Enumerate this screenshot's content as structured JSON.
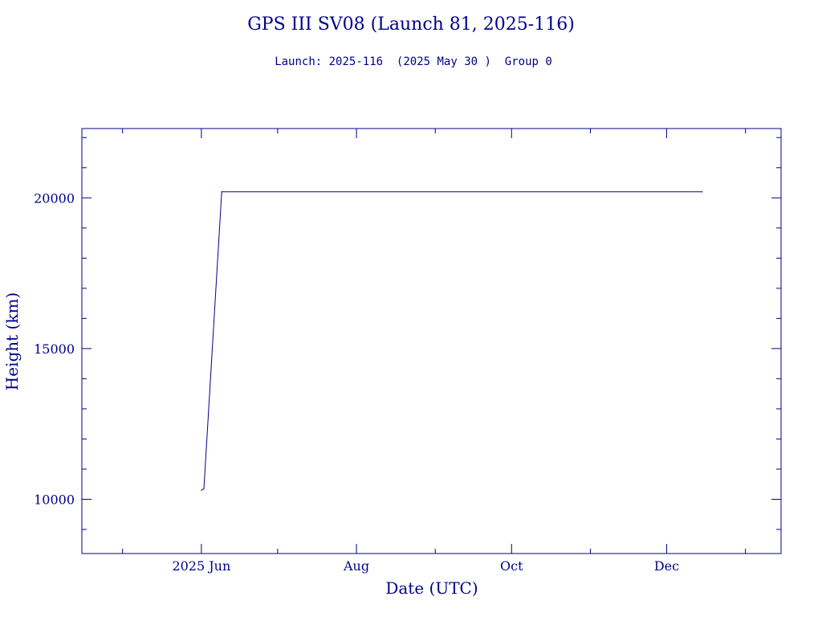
{
  "chart_data": {
    "type": "line",
    "title": "GPS III SV08 (Launch 81, 2025-116)",
    "subtitle": "Launch: 2025-116  (2025 May 30 )  Group 0",
    "xlabel": "Date (UTC)",
    "ylabel": "Height (km)",
    "xlim": [
      "2025-04-15",
      "2026-01-15"
    ],
    "ylim": [
      8200,
      22300
    ],
    "x_ticks": [
      {
        "date": "2025-06-01",
        "label": "2025 Jun"
      },
      {
        "date": "2025-08-01",
        "label": "Aug"
      },
      {
        "date": "2025-10-01",
        "label": "Oct"
      },
      {
        "date": "2025-12-01",
        "label": "Dec"
      }
    ],
    "y_ticks": [
      {
        "value": 10000,
        "label": "10000"
      },
      {
        "value": 15000,
        "label": "15000"
      },
      {
        "value": 20000,
        "label": "20000"
      }
    ],
    "series": [
      {
        "points": [
          {
            "x": "2025-06-01",
            "y": 10300
          },
          {
            "x": "2025-06-02",
            "y": 10350
          },
          {
            "x": "2025-06-09",
            "y": 20200
          },
          {
            "x": "2025-12-15",
            "y": 20200
          }
        ]
      }
    ],
    "colors": {
      "ink": "#00008b",
      "background": "#ffffff"
    },
    "grid": false,
    "legend": "none"
  }
}
